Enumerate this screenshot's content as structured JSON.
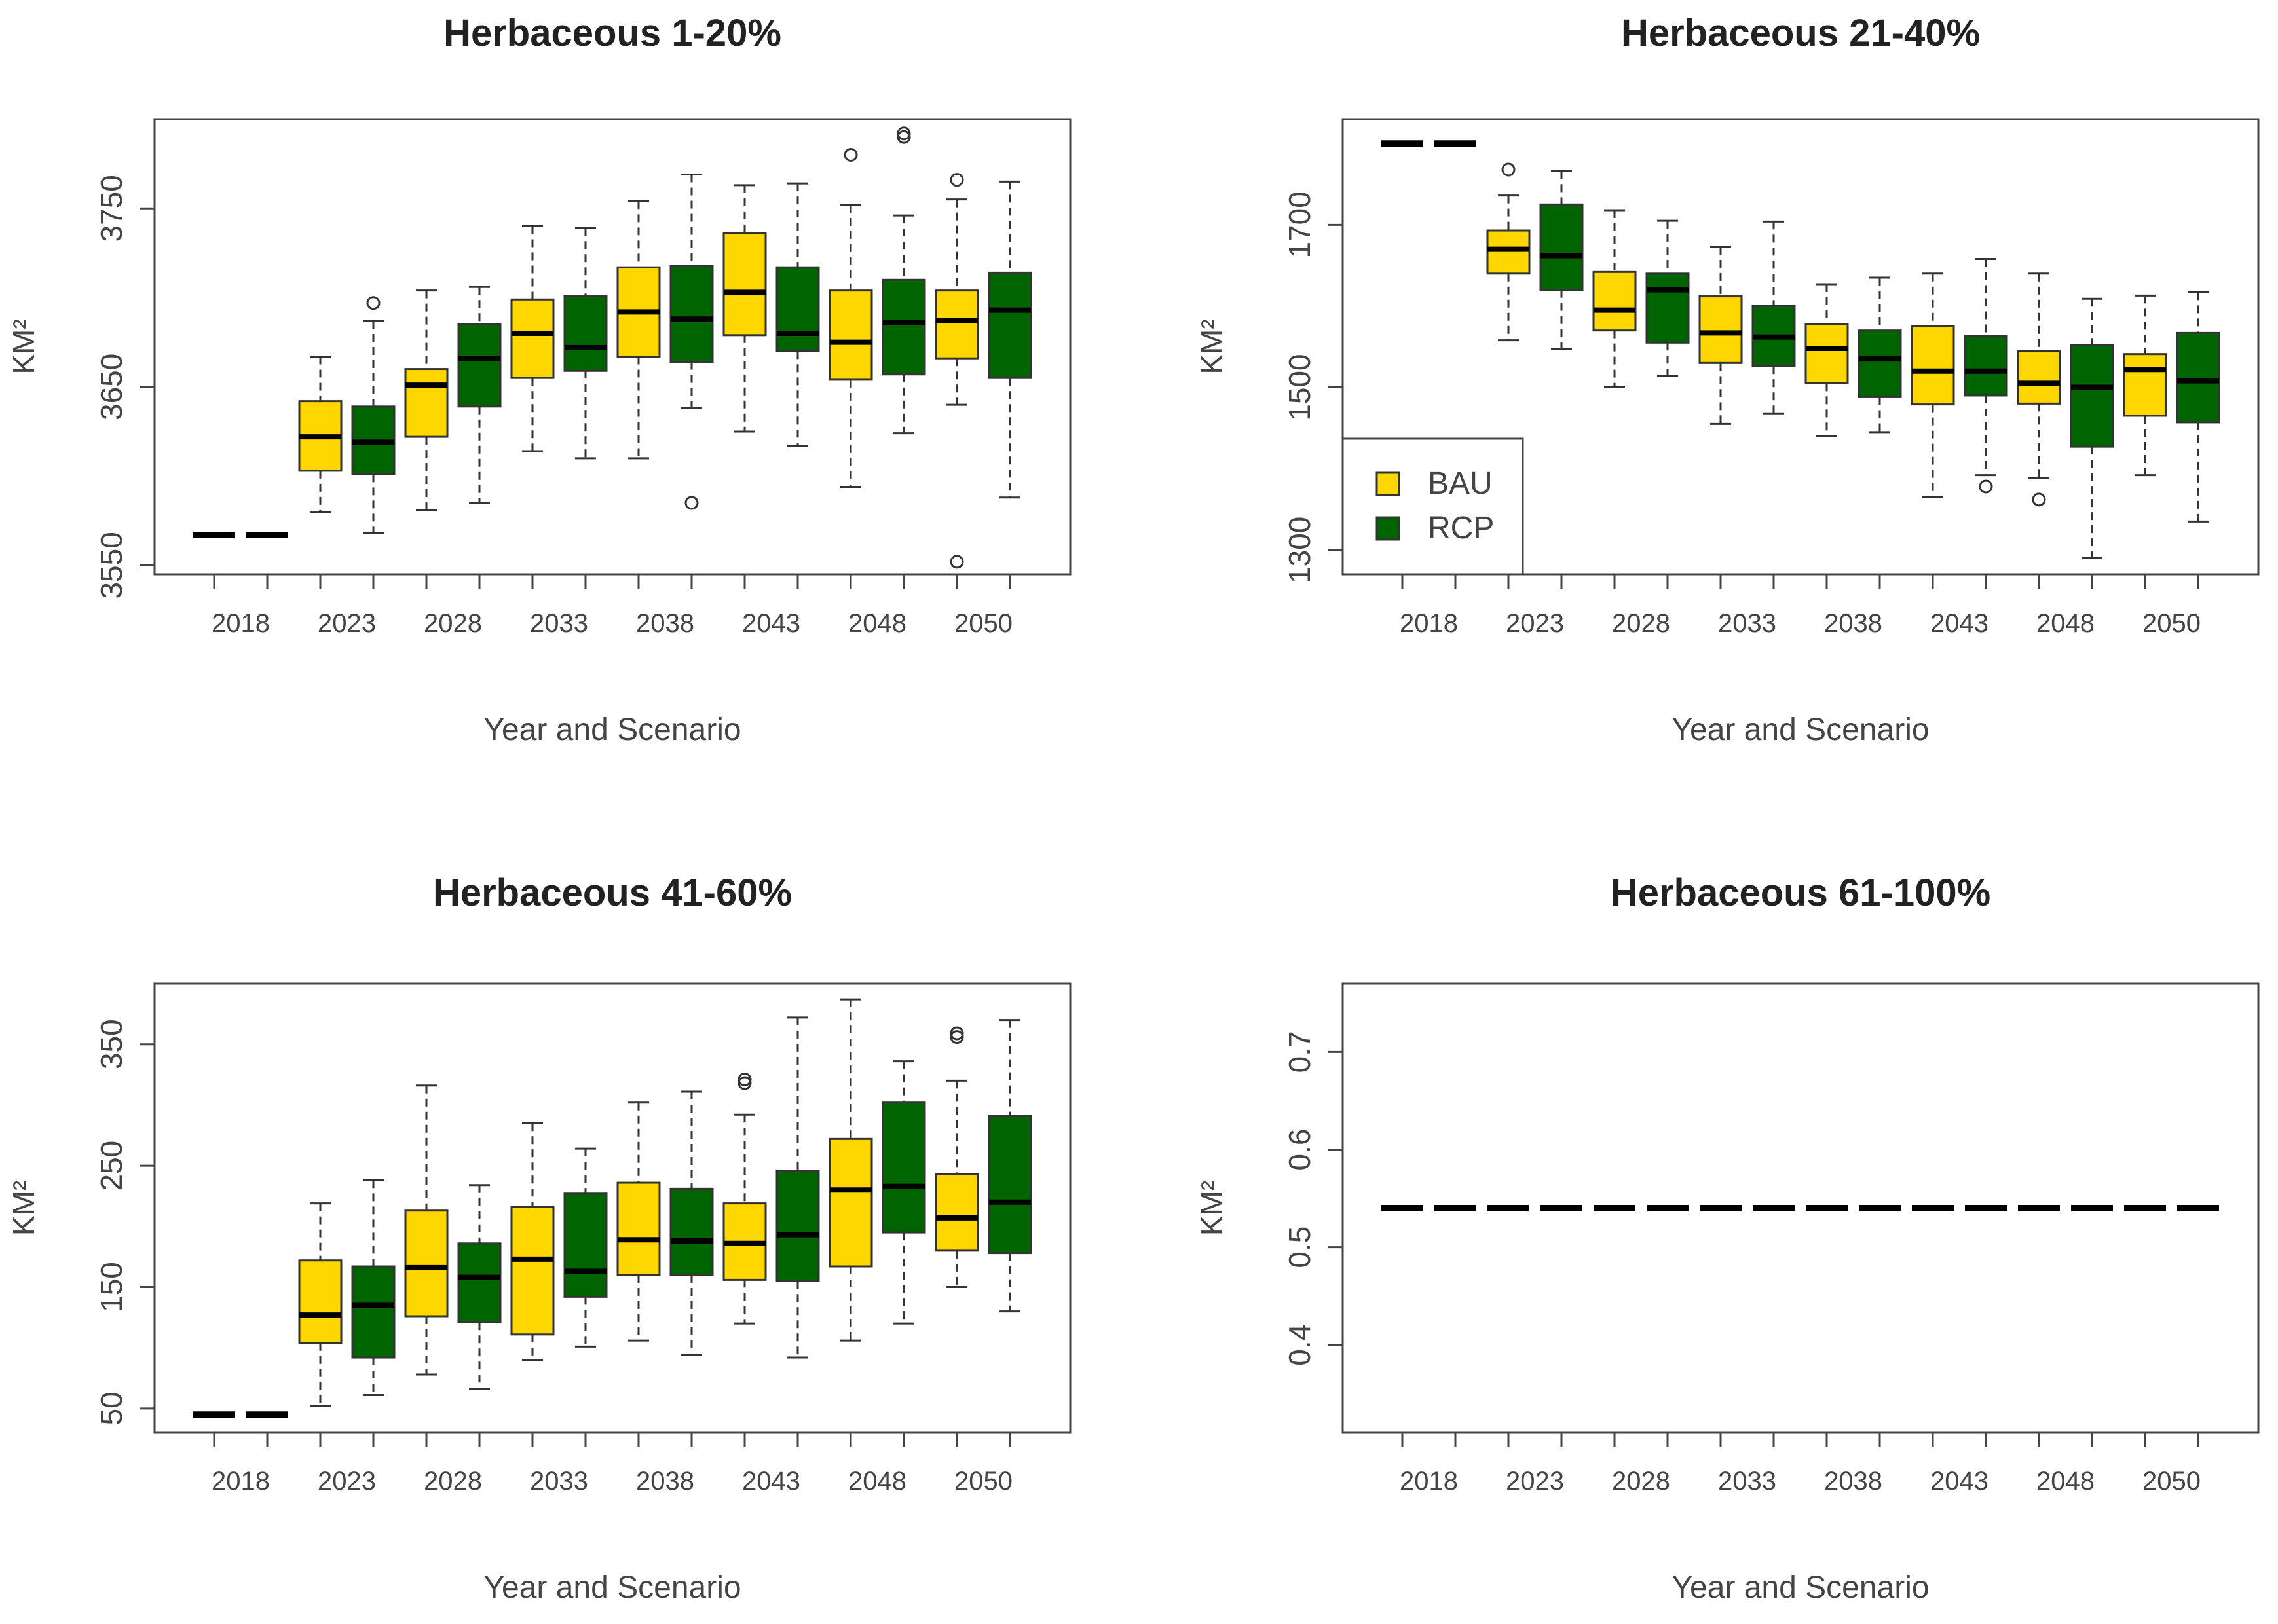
{
  "colors": {
    "bau": "#FFD700",
    "rcp": "#006400",
    "stroke": "#333333",
    "axis": "#444444",
    "text": "#222222"
  },
  "chart_data": [
    {
      "type": "boxplot",
      "title": "Herbaceous 1-20%",
      "xlabel": "Year and Scenario",
      "ylabel": "KM²",
      "ylim": [
        3545,
        3800
      ],
      "yticks": [
        3550,
        3650,
        3750
      ],
      "categories": [
        "2018",
        "2023",
        "2028",
        "2033",
        "2038",
        "2043",
        "2048",
        "2050"
      ],
      "legend": null,
      "series": [
        {
          "name": "BAU",
          "boxes": [
            {
              "min": 3567,
              "q1": 3567,
              "med": 3567,
              "q3": 3567,
              "max": 3567,
              "outliers": []
            },
            {
              "min": 3580,
              "q1": 3603,
              "med": 3622,
              "q3": 3642,
              "max": 3667,
              "outliers": []
            },
            {
              "min": 3581,
              "q1": 3622,
              "med": 3651,
              "q3": 3660,
              "max": 3704,
              "outliers": []
            },
            {
              "min": 3614,
              "q1": 3655,
              "med": 3680,
              "q3": 3699,
              "max": 3740,
              "outliers": []
            },
            {
              "min": 3610,
              "q1": 3667,
              "med": 3692,
              "q3": 3717,
              "max": 3754,
              "outliers": []
            },
            {
              "min": 3625,
              "q1": 3679,
              "med": 3703,
              "q3": 3736,
              "max": 3763,
              "outliers": []
            },
            {
              "min": 3594,
              "q1": 3654,
              "med": 3675,
              "q3": 3704,
              "max": 3752,
              "outliers": [
                3780
              ]
            },
            {
              "min": 3640,
              "q1": 3666,
              "med": 3687,
              "q3": 3704,
              "max": 3755,
              "outliers": [
                3766,
                3552
              ]
            }
          ]
        },
        {
          "name": "RCP",
          "boxes": [
            {
              "min": 3567,
              "q1": 3567,
              "med": 3567,
              "q3": 3567,
              "max": 3567,
              "outliers": []
            },
            {
              "min": 3568,
              "q1": 3601,
              "med": 3619,
              "q3": 3639,
              "max": 3687,
              "outliers": [
                3697
              ]
            },
            {
              "min": 3585,
              "q1": 3639,
              "med": 3666,
              "q3": 3685,
              "max": 3706,
              "outliers": []
            },
            {
              "min": 3610,
              "q1": 3659,
              "med": 3672,
              "q3": 3701,
              "max": 3739,
              "outliers": []
            },
            {
              "min": 3638,
              "q1": 3664,
              "med": 3688,
              "q3": 3718,
              "max": 3769,
              "outliers": [
                3585
              ]
            },
            {
              "min": 3617,
              "q1": 3670,
              "med": 3680,
              "q3": 3717,
              "max": 3764,
              "outliers": []
            },
            {
              "min": 3624,
              "q1": 3657,
              "med": 3686,
              "q3": 3710,
              "max": 3746,
              "outliers": [
                3792,
                3790
              ]
            },
            {
              "min": 3588,
              "q1": 3655,
              "med": 3693,
              "q3": 3714,
              "max": 3765,
              "outliers": []
            }
          ]
        }
      ]
    },
    {
      "type": "boxplot",
      "title": "Herbaceous 21-40%",
      "xlabel": "Year and Scenario",
      "ylabel": "KM²",
      "ylim": [
        1270,
        1830
      ],
      "yticks": [
        1300,
        1500,
        1700
      ],
      "categories": [
        "2018",
        "2023",
        "2028",
        "2033",
        "2038",
        "2043",
        "2048",
        "2050"
      ],
      "legend": {
        "position": "bottom-left",
        "entries": [
          "BAU",
          "RCP"
        ]
      },
      "series": [
        {
          "name": "BAU",
          "boxes": [
            {
              "min": 1800,
              "q1": 1800,
              "med": 1800,
              "q3": 1800,
              "max": 1800,
              "outliers": []
            },
            {
              "min": 1558,
              "q1": 1640,
              "med": 1670,
              "q3": 1693,
              "max": 1736,
              "outliers": [
                1768
              ]
            },
            {
              "min": 1500,
              "q1": 1570,
              "med": 1595,
              "q3": 1642,
              "max": 1718,
              "outliers": []
            },
            {
              "min": 1455,
              "q1": 1530,
              "med": 1567,
              "q3": 1612,
              "max": 1673,
              "outliers": []
            },
            {
              "min": 1440,
              "q1": 1505,
              "med": 1548,
              "q3": 1578,
              "max": 1627,
              "outliers": []
            },
            {
              "min": 1365,
              "q1": 1479,
              "med": 1520,
              "q3": 1575,
              "max": 1640,
              "outliers": []
            },
            {
              "min": 1388,
              "q1": 1480,
              "med": 1505,
              "q3": 1545,
              "max": 1640,
              "outliers": [
                1362
              ]
            },
            {
              "min": 1392,
              "q1": 1465,
              "med": 1522,
              "q3": 1541,
              "max": 1613,
              "outliers": []
            }
          ]
        },
        {
          "name": "RCP",
          "boxes": [
            {
              "min": 1800,
              "q1": 1800,
              "med": 1800,
              "q3": 1800,
              "max": 1800,
              "outliers": []
            },
            {
              "min": 1547,
              "q1": 1620,
              "med": 1662,
              "q3": 1725,
              "max": 1766,
              "outliers": []
            },
            {
              "min": 1514,
              "q1": 1555,
              "med": 1620,
              "q3": 1640,
              "max": 1705,
              "outliers": []
            },
            {
              "min": 1468,
              "q1": 1526,
              "med": 1562,
              "q3": 1600,
              "max": 1704,
              "outliers": []
            },
            {
              "min": 1445,
              "q1": 1488,
              "med": 1535,
              "q3": 1570,
              "max": 1635,
              "outliers": []
            },
            {
              "min": 1392,
              "q1": 1490,
              "med": 1520,
              "q3": 1563,
              "max": 1658,
              "outliers": [
                1378
              ]
            },
            {
              "min": 1290,
              "q1": 1427,
              "med": 1500,
              "q3": 1552,
              "max": 1609,
              "outliers": []
            },
            {
              "min": 1335,
              "q1": 1457,
              "med": 1508,
              "q3": 1567,
              "max": 1617,
              "outliers": []
            }
          ]
        }
      ]
    },
    {
      "type": "boxplot",
      "title": "Herbaceous 41-60%",
      "xlabel": "Year and Scenario",
      "ylabel": "KM²",
      "ylim": [
        30,
        400
      ],
      "yticks": [
        50,
        150,
        250,
        350
      ],
      "categories": [
        "2018",
        "2023",
        "2028",
        "2033",
        "2038",
        "2043",
        "2048",
        "2050"
      ],
      "legend": null,
      "series": [
        {
          "name": "BAU",
          "boxes": [
            {
              "min": 45,
              "q1": 45,
              "med": 45,
              "q3": 45,
              "max": 45,
              "outliers": []
            },
            {
              "min": 52,
              "q1": 104,
              "med": 127,
              "q3": 172,
              "max": 219,
              "outliers": []
            },
            {
              "min": 78,
              "q1": 126,
              "med": 166,
              "q3": 213,
              "max": 316,
              "outliers": []
            },
            {
              "min": 90,
              "q1": 111,
              "med": 173,
              "q3": 216,
              "max": 285,
              "outliers": []
            },
            {
              "min": 106,
              "q1": 160,
              "med": 189,
              "q3": 236,
              "max": 302,
              "outliers": []
            },
            {
              "min": 120,
              "q1": 156,
              "med": 186,
              "q3": 219,
              "max": 292,
              "outliers": [
                321,
                318
              ]
            },
            {
              "min": 106,
              "q1": 167,
              "med": 230,
              "q3": 272,
              "max": 387,
              "outliers": []
            },
            {
              "min": 150,
              "q1": 180,
              "med": 207,
              "q3": 243,
              "max": 320,
              "outliers": [
                359,
                356
              ]
            }
          ]
        },
        {
          "name": "RCP",
          "boxes": [
            {
              "min": 45,
              "q1": 45,
              "med": 45,
              "q3": 45,
              "max": 45,
              "outliers": []
            },
            {
              "min": 61,
              "q1": 92,
              "med": 135,
              "q3": 167,
              "max": 238,
              "outliers": []
            },
            {
              "min": 66,
              "q1": 121,
              "med": 158,
              "q3": 186,
              "max": 234,
              "outliers": []
            },
            {
              "min": 101,
              "q1": 142,
              "med": 163,
              "q3": 227,
              "max": 264,
              "outliers": []
            },
            {
              "min": 94,
              "q1": 160,
              "med": 188,
              "q3": 231,
              "max": 311,
              "outliers": []
            },
            {
              "min": 92,
              "q1": 155,
              "med": 193,
              "q3": 246,
              "max": 372,
              "outliers": []
            },
            {
              "min": 120,
              "q1": 195,
              "med": 233,
              "q3": 302,
              "max": 336,
              "outliers": []
            },
            {
              "min": 130,
              "q1": 178,
              "med": 220,
              "q3": 291,
              "max": 370,
              "outliers": []
            }
          ]
        }
      ]
    },
    {
      "type": "boxplot",
      "title": "Herbaceous 61-100%",
      "xlabel": "Year and Scenario",
      "ylabel": "KM²",
      "ylim": [
        0.31,
        0.77
      ],
      "yticks": [
        0.4,
        0.5,
        0.6,
        0.7
      ],
      "categories": [
        "2018",
        "2023",
        "2028",
        "2033",
        "2038",
        "2043",
        "2048",
        "2050"
      ],
      "legend": null,
      "series": [
        {
          "name": "BAU",
          "boxes": [
            {
              "min": 0.54,
              "q1": 0.54,
              "med": 0.54,
              "q3": 0.54,
              "max": 0.54,
              "outliers": []
            },
            {
              "min": 0.54,
              "q1": 0.54,
              "med": 0.54,
              "q3": 0.54,
              "max": 0.54,
              "outliers": []
            },
            {
              "min": 0.54,
              "q1": 0.54,
              "med": 0.54,
              "q3": 0.54,
              "max": 0.54,
              "outliers": []
            },
            {
              "min": 0.54,
              "q1": 0.54,
              "med": 0.54,
              "q3": 0.54,
              "max": 0.54,
              "outliers": []
            },
            {
              "min": 0.54,
              "q1": 0.54,
              "med": 0.54,
              "q3": 0.54,
              "max": 0.54,
              "outliers": []
            },
            {
              "min": 0.54,
              "q1": 0.54,
              "med": 0.54,
              "q3": 0.54,
              "max": 0.54,
              "outliers": []
            },
            {
              "min": 0.54,
              "q1": 0.54,
              "med": 0.54,
              "q3": 0.54,
              "max": 0.54,
              "outliers": []
            },
            {
              "min": 0.54,
              "q1": 0.54,
              "med": 0.54,
              "q3": 0.54,
              "max": 0.54,
              "outliers": []
            }
          ]
        },
        {
          "name": "RCP",
          "boxes": [
            {
              "min": 0.54,
              "q1": 0.54,
              "med": 0.54,
              "q3": 0.54,
              "max": 0.54,
              "outliers": []
            },
            {
              "min": 0.54,
              "q1": 0.54,
              "med": 0.54,
              "q3": 0.54,
              "max": 0.54,
              "outliers": []
            },
            {
              "min": 0.54,
              "q1": 0.54,
              "med": 0.54,
              "q3": 0.54,
              "max": 0.54,
              "outliers": []
            },
            {
              "min": 0.54,
              "q1": 0.54,
              "med": 0.54,
              "q3": 0.54,
              "max": 0.54,
              "outliers": []
            },
            {
              "min": 0.54,
              "q1": 0.54,
              "med": 0.54,
              "q3": 0.54,
              "max": 0.54,
              "outliers": []
            },
            {
              "min": 0.54,
              "q1": 0.54,
              "med": 0.54,
              "q3": 0.54,
              "max": 0.54,
              "outliers": []
            },
            {
              "min": 0.54,
              "q1": 0.54,
              "med": 0.54,
              "q3": 0.54,
              "max": 0.54,
              "outliers": []
            },
            {
              "min": 0.54,
              "q1": 0.54,
              "med": 0.54,
              "q3": 0.54,
              "max": 0.54,
              "outliers": []
            }
          ]
        }
      ]
    }
  ]
}
